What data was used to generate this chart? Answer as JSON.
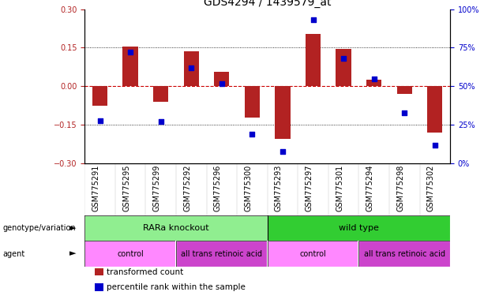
{
  "title": "GDS4294 / 1439579_at",
  "samples": [
    "GSM775291",
    "GSM775295",
    "GSM775299",
    "GSM775292",
    "GSM775296",
    "GSM775300",
    "GSM775293",
    "GSM775297",
    "GSM775301",
    "GSM775294",
    "GSM775298",
    "GSM775302"
  ],
  "bar_values": [
    -0.075,
    0.155,
    -0.06,
    0.135,
    0.055,
    -0.12,
    -0.205,
    0.205,
    0.145,
    0.025,
    -0.03,
    -0.18
  ],
  "scatter_values": [
    0.28,
    0.72,
    0.27,
    0.62,
    0.52,
    0.19,
    0.08,
    0.93,
    0.68,
    0.55,
    0.33,
    0.12
  ],
  "bar_color": "#B22222",
  "scatter_color": "#0000CC",
  "zero_line_color": "#CC0000",
  "hline_color": "#000000",
  "ylim_left": [
    -0.3,
    0.3
  ],
  "ylim_right": [
    0,
    1.0
  ],
  "yticks_left": [
    -0.3,
    -0.15,
    0,
    0.15,
    0.3
  ],
  "yticks_right": [
    0,
    0.25,
    0.5,
    0.75,
    1.0
  ],
  "ytick_labels_right": [
    "0%",
    "25%",
    "50%",
    "75%",
    "100%"
  ],
  "genotype_groups": [
    {
      "label": "RARa knockout",
      "start": 0,
      "end": 6,
      "color": "#90EE90"
    },
    {
      "label": "wild type",
      "start": 6,
      "end": 12,
      "color": "#32CD32"
    }
  ],
  "agent_groups": [
    {
      "label": "control",
      "start": 0,
      "end": 3,
      "color": "#FF88FF"
    },
    {
      "label": "all trans retinoic acid",
      "start": 3,
      "end": 6,
      "color": "#CC44CC"
    },
    {
      "label": "control",
      "start": 6,
      "end": 9,
      "color": "#FF88FF"
    },
    {
      "label": "all trans retinoic acid",
      "start": 9,
      "end": 12,
      "color": "#CC44CC"
    }
  ],
  "legend_items": [
    {
      "label": "transformed count",
      "color": "#B22222"
    },
    {
      "label": "percentile rank within the sample",
      "color": "#0000CC"
    }
  ],
  "xlabel_rotation": 90,
  "title_fontsize": 10,
  "tick_fontsize": 7,
  "bar_width": 0.5
}
